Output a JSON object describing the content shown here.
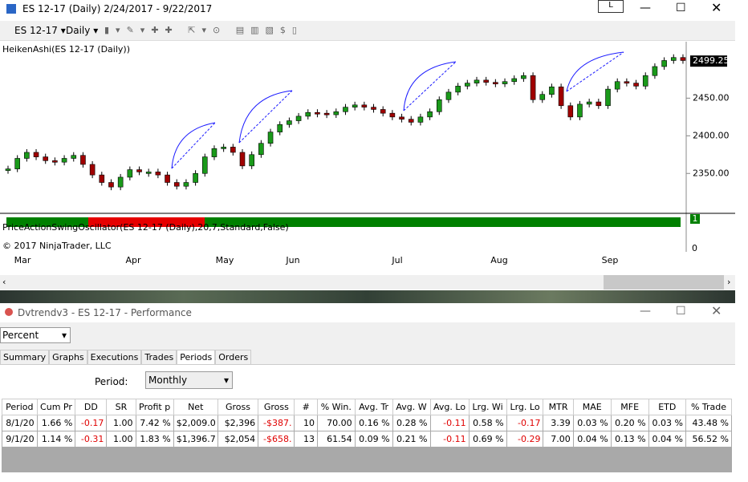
{
  "window": {
    "title": "ES 12-17 (Daily)  2/24/2017 - 9/22/2017",
    "button": "L"
  },
  "toolbar": {
    "instrument": "ES 12-17",
    "interval": "Daily"
  },
  "chart": {
    "indicator_top": "HeikenAshi(ES 12-17 (Daily))",
    "indicator_bottom": "PriceActionSwingOscillator(ES 12-17 (Daily),20,7,Standard,False)",
    "copyright": "© 2017 NinjaTrader, LLC",
    "last_price": {
      "value": 2499.25,
      "label": "2499.25"
    },
    "ylim": [
      2297,
      2525
    ],
    "yticks": [
      {
        "value": 2350,
        "label": "2350.00"
      },
      {
        "value": 2400,
        "label": "2400.00"
      },
      {
        "value": 2450,
        "label": "2450.00"
      }
    ],
    "x_labels": [
      "Mar",
      "Apr",
      "May",
      "Jun",
      "Jul",
      "Aug",
      "Sep"
    ],
    "closes": [
      2356,
      2370,
      2378,
      2372,
      2367,
      2365,
      2370,
      2374,
      2362,
      2348,
      2338,
      2332,
      2345,
      2355,
      2352,
      2352,
      2348,
      2338,
      2333,
      2338,
      2350,
      2372,
      2383,
      2385,
      2378,
      2360,
      2375,
      2390,
      2405,
      2415,
      2420,
      2426,
      2431,
      2430,
      2428,
      2432,
      2438,
      2441,
      2438,
      2435,
      2430,
      2425,
      2422,
      2418,
      2425,
      2432,
      2448,
      2458,
      2466,
      2470,
      2474,
      2471,
      2469,
      2472,
      2476,
      2480,
      2448,
      2455,
      2465,
      2440,
      2425,
      2442,
      2445,
      2440,
      2462,
      2472,
      2470,
      2466,
      2480,
      2492,
      2500,
      2504,
      2500
    ],
    "osc_label": "1",
    "osc_zero": "0"
  },
  "performance": {
    "title": "Dvtrendv3 - ES 12-17 - Performance",
    "mode": "Percent",
    "tabs": [
      "Summary",
      "Graphs",
      "Executions",
      "Trades",
      "Periods",
      "Orders"
    ],
    "period_label": "Period:",
    "period": "Monthly",
    "table": {
      "header": [
        "Period",
        "Cum Pr",
        "DD",
        "SR",
        "Profit p",
        "Net",
        "Gross",
        "Gross",
        "#",
        "% Win.",
        "Avg. Tr",
        "Avg. W",
        "Avg. Lo",
        "Lrg. Wi",
        "Lrg. Lo",
        "MTR",
        "MAE",
        "MFE",
        "ETD",
        "% Trade"
      ],
      "rows": [
        [
          "8/1/20",
          "1.66 %",
          "-0.17",
          "1.00",
          "7.42 %",
          "$2,009.0",
          "$2,396",
          "-$387.",
          "10",
          "70.00",
          "0.16 %",
          "0.28 %",
          "-0.11",
          "0.58 %",
          "-0.17",
          "3.39",
          "0.03 %",
          "0.20 %",
          "0.03 %",
          "43.48 %"
        ],
        [
          "9/1/20",
          "1.14 %",
          "-0.31",
          "1.00",
          "1.83 %",
          "$1,396.7",
          "$2,054",
          "-$658.",
          "13",
          "61.54",
          "0.09 %",
          "0.21 %",
          "-0.11",
          "0.69 %",
          "-0.29",
          "7.00",
          "0.04 %",
          "0.13 %",
          "0.04 %",
          "56.52 %"
        ]
      ]
    }
  }
}
